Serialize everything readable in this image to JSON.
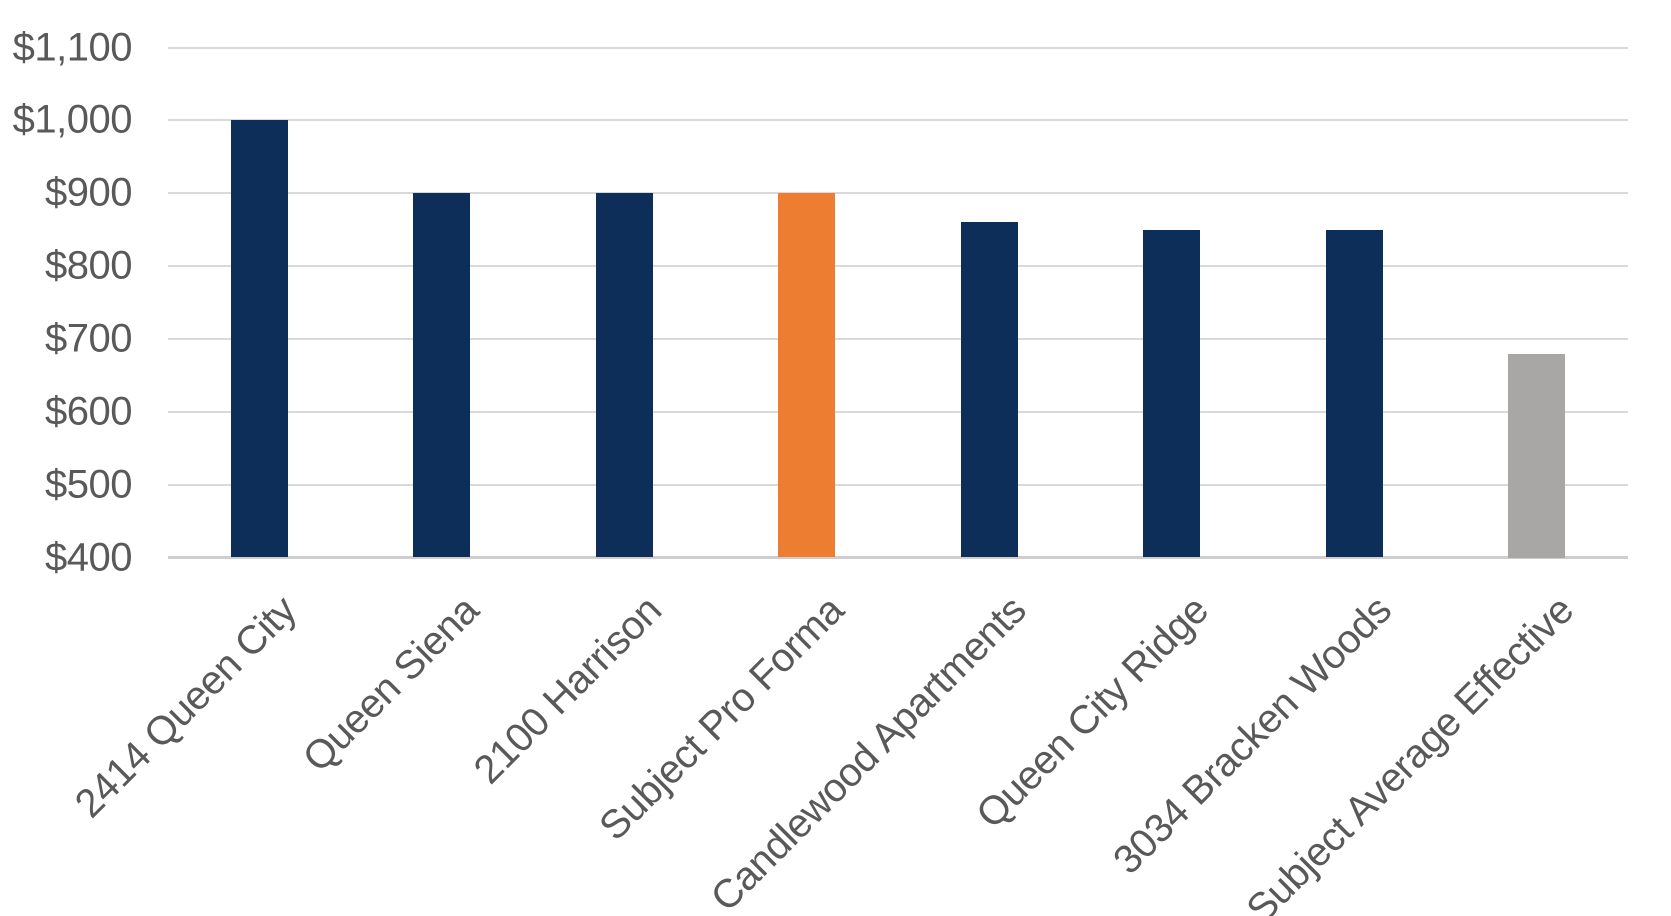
{
  "chart_data": {
    "type": "bar",
    "title": "",
    "xlabel": "",
    "ylabel": "",
    "categories": [
      "2414 Queen City",
      "Queen Siena",
      "2100 Harrison",
      "Subject Pro Forma",
      "Candlewood Apartments",
      "Queen City Ridge",
      "3034 Bracken Woods",
      "Subject Average Effective"
    ],
    "values": [
      1000,
      900,
      900,
      900,
      860,
      850,
      850,
      680
    ],
    "bar_color_roles": [
      "navy",
      "navy",
      "navy",
      "orange",
      "navy",
      "navy",
      "navy",
      "gray"
    ],
    "colors": {
      "navy": "#0C2E58",
      "orange": "#ED7D31",
      "gray": "#A9A6A6"
    },
    "ylim": [
      400,
      1100
    ],
    "ytick_step": 100,
    "ytick_labels": [
      "$400",
      "$500",
      "$600",
      "$700",
      "$800",
      "$900",
      "$1,000",
      "$1,100"
    ],
    "grid": true,
    "legend": false,
    "axis_label_color": "#595959",
    "gridline_color": "#D9D9D9",
    "axis_line_color": "#CFCDCD",
    "background": "#FFFFFF",
    "x_label_rotation_deg": -45
  }
}
